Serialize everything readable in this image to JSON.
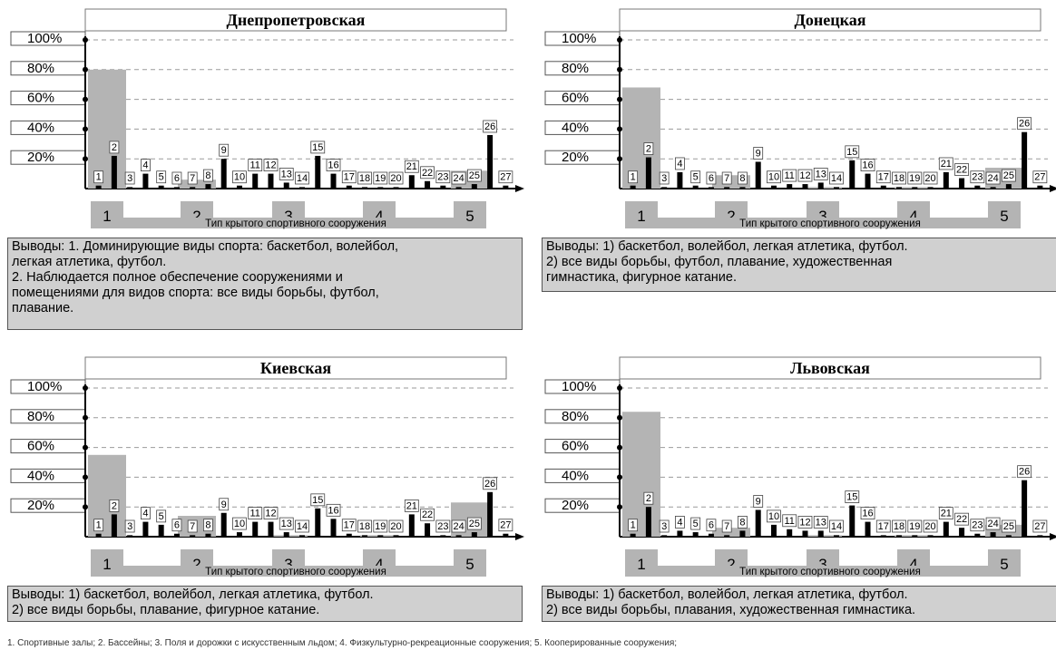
{
  "chart_data": [
    {
      "type": "bar",
      "title": "Днепропетровская",
      "xlabel": "Тип крытого спортивного сооружения",
      "ylim": [
        0,
        100
      ],
      "yticks": [
        "20%",
        "40%",
        "60%",
        "80%",
        "100%"
      ],
      "groups": [
        "1",
        "2",
        "3",
        "4",
        "5"
      ],
      "group_values": [
        80,
        6,
        0,
        0,
        12
      ],
      "categories": [
        "1",
        "2",
        "3",
        "4",
        "5",
        "6",
        "7",
        "8",
        "9",
        "10",
        "11",
        "12",
        "13",
        "14",
        "15",
        "16",
        "17",
        "18",
        "19",
        "20",
        "21",
        "22",
        "23",
        "24",
        "25",
        "26",
        "27"
      ],
      "values": [
        2,
        22,
        1,
        10,
        2,
        1,
        1,
        3,
        20,
        2,
        10,
        10,
        4,
        1,
        22,
        10,
        2,
        1,
        1,
        1,
        9,
        5,
        2,
        1,
        3,
        36,
        2
      ],
      "conclusion": "Выводы: 1. Доминирующие виды спорта: баскетбол, волейбол,\nлегкая атлетика, футбол.\n2. Наблюдается полное обеспечение сооружениями и\nпомещениями для видов спорта: все виды борьбы, футбол,\nплавание."
    },
    {
      "type": "bar",
      "title": "Донецкая",
      "xlabel": "Тип крытого спортивного сооружения",
      "ylim": [
        0,
        100
      ],
      "yticks": [
        "20%",
        "40%",
        "60%",
        "80%",
        "100%"
      ],
      "groups": [
        "1",
        "2",
        "3",
        "4",
        "5"
      ],
      "group_values": [
        68,
        9,
        1,
        1,
        14
      ],
      "categories": [
        "1",
        "2",
        "3",
        "4",
        "5",
        "6",
        "7",
        "8",
        "9",
        "10",
        "11",
        "12",
        "13",
        "14",
        "15",
        "16",
        "17",
        "18",
        "19",
        "20",
        "21",
        "22",
        "23",
        "24",
        "25",
        "26",
        "27"
      ],
      "values": [
        2,
        21,
        1,
        11,
        2,
        1,
        1,
        1,
        18,
        2,
        3,
        3,
        4,
        1,
        19,
        10,
        2,
        1,
        1,
        1,
        11,
        7,
        2,
        1,
        3,
        38,
        2
      ],
      "conclusion": "Выводы: 1) баскетбол, волейбол, легкая атлетика, футбол.\n2) все виды борьбы, футбол, плавание, художественная\nгимнастика, фигурное катание."
    },
    {
      "type": "bar",
      "title": "Киевская",
      "xlabel": "Тип крытого спортивного сооружения",
      "ylim": [
        0,
        100
      ],
      "yticks": [
        "20%",
        "40%",
        "60%",
        "80%",
        "100%"
      ],
      "groups": [
        "1",
        "2",
        "3",
        "4",
        "5"
      ],
      "group_values": [
        55,
        14,
        1,
        1,
        23
      ],
      "categories": [
        "1",
        "2",
        "3",
        "4",
        "5",
        "6",
        "7",
        "8",
        "9",
        "10",
        "11",
        "12",
        "13",
        "14",
        "15",
        "16",
        "17",
        "18",
        "19",
        "20",
        "21",
        "22",
        "23",
        "24",
        "25",
        "26",
        "27"
      ],
      "values": [
        2,
        15,
        1,
        10,
        8,
        2,
        1,
        2,
        16,
        3,
        10,
        10,
        3,
        1,
        19,
        12,
        2,
        1,
        1,
        1,
        15,
        9,
        1,
        1,
        3,
        30,
        2
      ],
      "conclusion": "Выводы: 1) баскетбол, волейбол, легкая атлетика, футбол.\n2) все виды борьбы, плавание, фигурное катание."
    },
    {
      "type": "bar",
      "title": "Львовская",
      "xlabel": "Тип крытого спортивного сооружения",
      "ylim": [
        0,
        100
      ],
      "yticks": [
        "20%",
        "40%",
        "60%",
        "80%",
        "100%"
      ],
      "groups": [
        "1",
        "2",
        "3",
        "4",
        "5"
      ],
      "group_values": [
        84,
        6,
        1,
        1,
        8
      ],
      "categories": [
        "1",
        "2",
        "3",
        "4",
        "5",
        "6",
        "7",
        "8",
        "9",
        "10",
        "11",
        "12",
        "13",
        "14",
        "15",
        "16",
        "17",
        "18",
        "19",
        "20",
        "21",
        "22",
        "23",
        "24",
        "25",
        "26",
        "27"
      ],
      "values": [
        2,
        20,
        1,
        4,
        3,
        2,
        1,
        4,
        18,
        8,
        5,
        4,
        4,
        1,
        21,
        10,
        1,
        1,
        1,
        1,
        10,
        6,
        2,
        3,
        1,
        38,
        1
      ],
      "conclusion": "Выводы: 1) баскетбол, волейбол, легкая атлетика, футбол.\n2) все виды борьбы, плавания, художественная гимнастика."
    }
  ],
  "footnote": "1. Спортивные залы;  2. Бассейны; 3. Поля и дорожки с искусственным льдом; 4. Физкультурно-рекреационные сооружения; 5. Кооперированные сооружения;",
  "colors": {
    "gray": "#b4b4b4",
    "black": "#000000",
    "grid": "#9a9a9a",
    "panel": "#d0d0d0"
  }
}
